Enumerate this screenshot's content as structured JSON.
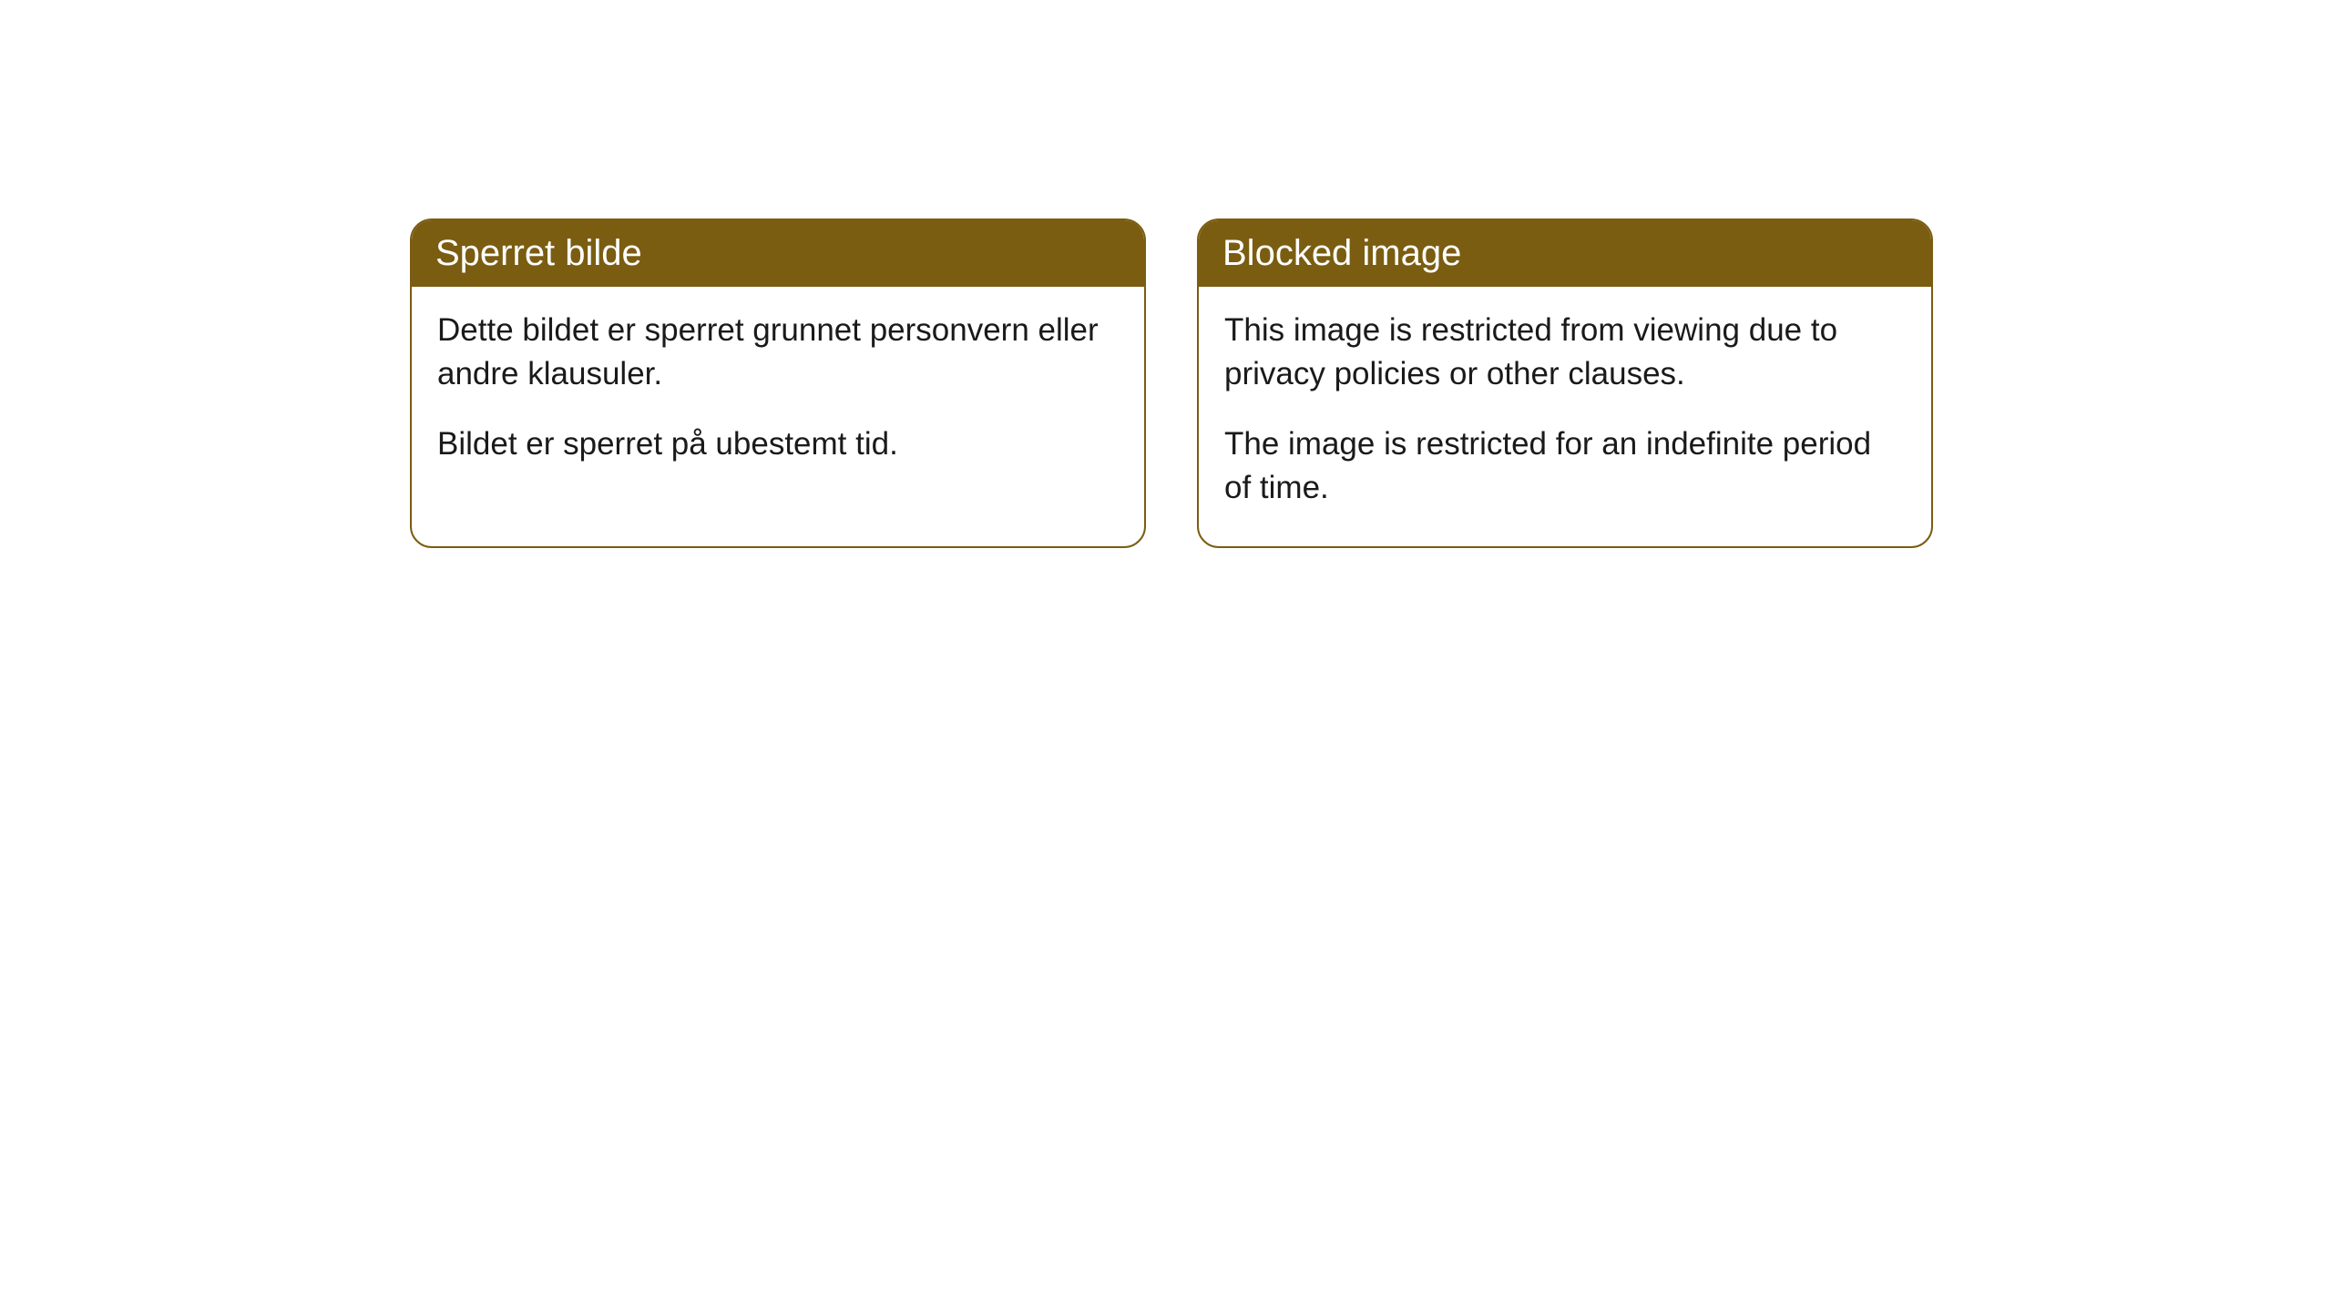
{
  "cards": [
    {
      "title": "Sperret bilde",
      "paragraph1": "Dette bildet er sperret grunnet personvern eller andre klausuler.",
      "paragraph2": "Bildet er sperret på ubestemt tid."
    },
    {
      "title": "Blocked image",
      "paragraph1": "This image is restricted from viewing due to privacy policies or other clauses.",
      "paragraph2": "The image is restricted for an indefinite period of time."
    }
  ],
  "style": {
    "header_bg": "#7a5d11",
    "header_color": "#ffffff",
    "border_color": "#7a5d11",
    "body_bg": "#ffffff",
    "body_text_color": "#1a1a1a",
    "border_radius": 24,
    "title_fontsize": 40,
    "body_fontsize": 35
  }
}
